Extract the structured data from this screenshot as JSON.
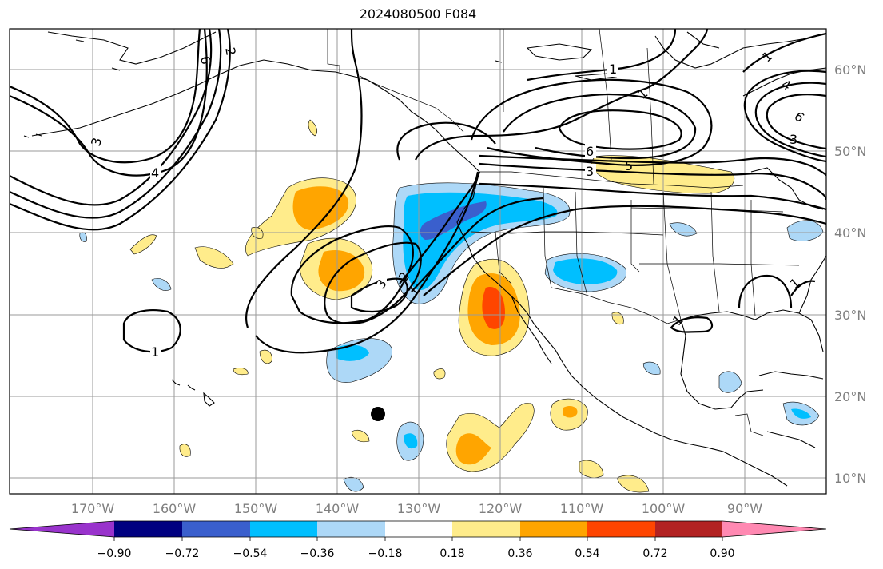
{
  "title": "2024080500 F084",
  "lat_labels": [
    "60°N",
    "50°N",
    "40°N",
    "30°N",
    "20°N",
    "10°N"
  ],
  "lon_labels": [
    "170°W",
    "160°W",
    "150°W",
    "140°W",
    "130°W",
    "120°W",
    "110°W",
    "100°W",
    "90°W"
  ],
  "contour_labels": [
    "1",
    "1",
    "1",
    "1",
    "1",
    "1",
    "1",
    "2",
    "2",
    "3",
    "3",
    "3",
    "3",
    "4",
    "4",
    "5",
    "6",
    "6",
    "6"
  ],
  "colorbar": {
    "ticks": [
      "−0.90",
      "−0.72",
      "−0.54",
      "−0.36",
      "−0.18",
      "0.18",
      "0.36",
      "0.54",
      "0.72",
      "0.90"
    ],
    "colors": [
      "#9933cc",
      "#000080",
      "#3a5fcd",
      "#00bfff",
      "#add8f7",
      "#ffffff",
      "#ffec8b",
      "#ffa500",
      "#ff4500",
      "#b22222",
      "#ff89b2"
    ]
  },
  "shading_colors": {
    "light_blue": "#add8f7",
    "blue": "#00bfff",
    "royal": "#3a5fcd",
    "yellow": "#ffec8b",
    "orange": "#ffa500",
    "red": "#ff4500"
  }
}
